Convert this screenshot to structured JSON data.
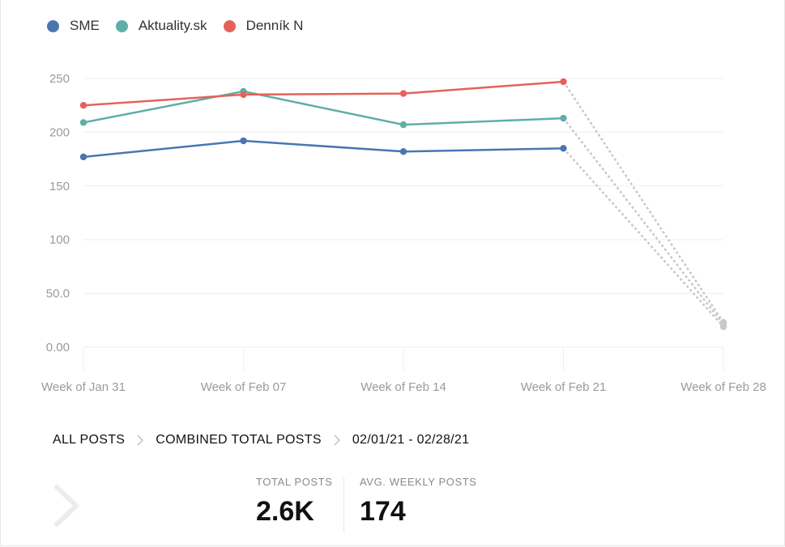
{
  "legend": [
    {
      "name": "SME",
      "color": "#4a76b0"
    },
    {
      "name": "Aktuality.sk",
      "color": "#5faea8"
    },
    {
      "name": "Denník N",
      "color": "#e5625b"
    }
  ],
  "chart_data": {
    "type": "line",
    "x": [
      "Week of Jan 31",
      "Week of Feb 07",
      "Week of Feb 14",
      "Week of Feb 21",
      "Week of Feb 28"
    ],
    "ylim": [
      0,
      250
    ],
    "yticks": [
      "0.00",
      "50.0",
      "100",
      "150",
      "200",
      "250"
    ],
    "ytick_values": [
      0,
      50,
      100,
      150,
      200,
      250
    ],
    "grid": true,
    "legend_position": "top-left",
    "partial_period_style": "dotted-gray",
    "series": [
      {
        "name": "SME",
        "color": "#4a76b0",
        "values": [
          177,
          192,
          182,
          185,
          19
        ]
      },
      {
        "name": "Aktuality.sk",
        "color": "#5faea8",
        "values": [
          209,
          238,
          207,
          213,
          21
        ]
      },
      {
        "name": "Denník N",
        "color": "#e5625b",
        "values": [
          225,
          235,
          236,
          247,
          23
        ]
      }
    ]
  },
  "breadcrumb": {
    "items": [
      "ALL POSTS",
      "COMBINED TOTAL POSTS"
    ],
    "date_range": "02/01/21 - 02/28/21"
  },
  "stats": {
    "total_posts_label": "TOTAL POSTS",
    "total_posts_value": "2.6K",
    "avg_weekly_label": "AVG. WEEKLY POSTS",
    "avg_weekly_value": "174"
  }
}
